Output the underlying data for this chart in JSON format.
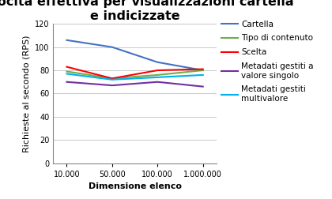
{
  "title": "Velocità effettiva per visualizzazioni cartella\ne indicizzate",
  "xlabel": "Dimensione elenco",
  "ylabel": "Richieste al secondo (RPS)",
  "x_labels": [
    "10.000",
    "50.000",
    "100.000",
    "1.000.000"
  ],
  "series": [
    {
      "label": "Cartella",
      "color": "#4472C4",
      "values": [
        106,
        100,
        87,
        80
      ]
    },
    {
      "label": "Tipo di contenuto",
      "color": "#70AD47",
      "values": [
        79,
        73,
        76,
        80
      ]
    },
    {
      "label": "Scelta",
      "color": "#FF0000",
      "values": [
        83,
        73,
        80,
        81
      ]
    },
    {
      "label": "Metadati gestiti a\nvalore singolo",
      "color": "#7030A0",
      "values": [
        70,
        67,
        70,
        66
      ]
    },
    {
      "label": "Metadati gestiti\nmultivalore",
      "color": "#00B0F0",
      "values": [
        77,
        72,
        74,
        76
      ]
    }
  ],
  "ylim": [
    0,
    120
  ],
  "yticks": [
    0,
    20,
    40,
    60,
    80,
    100,
    120
  ],
  "background_color": "#FFFFFF",
  "title_fontsize": 11.5,
  "axis_label_fontsize": 8,
  "tick_fontsize": 7,
  "legend_fontsize": 7.5
}
